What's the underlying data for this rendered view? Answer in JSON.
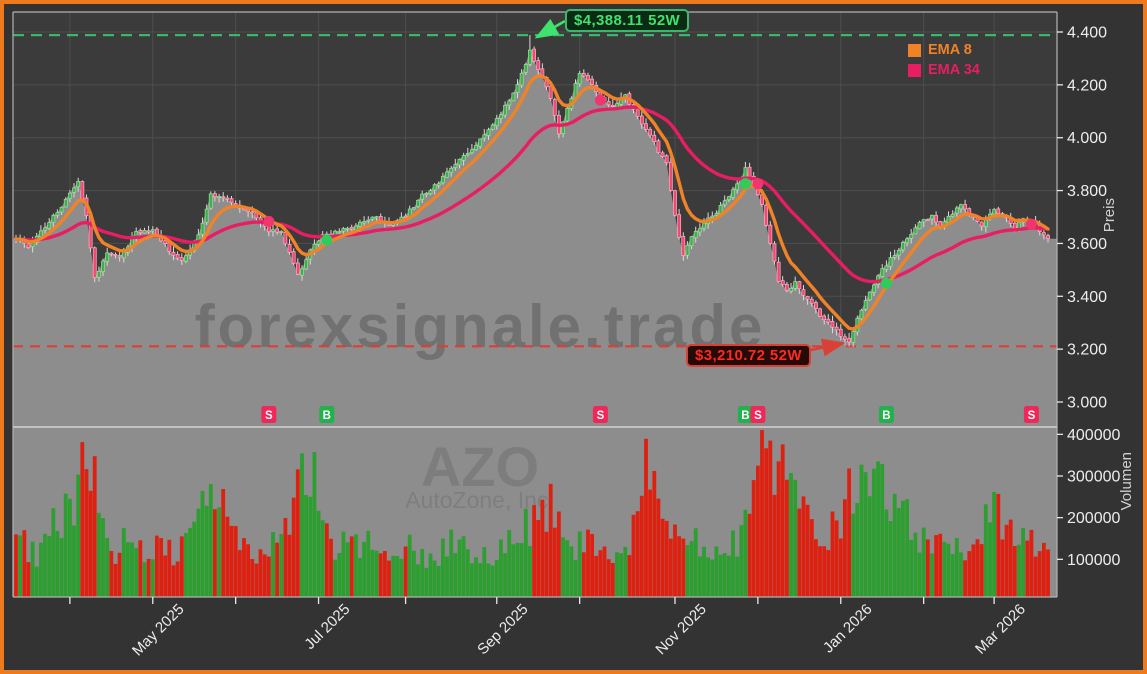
{
  "watermarks": {
    "brand": "forexsignale.trade",
    "ticker": "AZO",
    "company": "AutoZone, Inc."
  },
  "colors": {
    "frame": "#ed7a1c",
    "bg": "#333333",
    "plot_bg": "#3b3b3b",
    "grid": "#4e4e4e",
    "area": "#8d8d8d",
    "spine": "#b3b3b3",
    "tick_mark": "#e8e8e8",
    "wick": "#d9d9d9",
    "candle_up": "#3fae4c",
    "candle_up_edge": "#9be09b",
    "candle_down": "#ef4a71",
    "candle_down_edge": "#ffaec5",
    "vol_up": "#2d9e30",
    "vol_down": "#dd2010",
    "ema8": "#f08228",
    "ema34": "#e81d64",
    "high_line": "#38b86b",
    "high_text": "#3fe26d",
    "low_line": "#d94136",
    "low_text": "#ff2a1f",
    "badge_b": "#22b14c",
    "badge_s": "#f0285a",
    "dot_b": "#2ecc5b",
    "dot_s": "#f1356e"
  },
  "chart_data": {
    "type": "candlestick+volume",
    "ylabel_price": "Preis",
    "ylabel_volume": "Volumen",
    "price_axis_range": [
      3000,
      4400
    ],
    "volume_axis_range": [
      0,
      400000
    ],
    "candle_count": 250,
    "price_ticks": [
      {
        "p": 4400,
        "label": "4.400"
      },
      {
        "p": 4200,
        "label": "4.200"
      },
      {
        "p": 4000,
        "label": "4.000"
      },
      {
        "p": 3800,
        "label": "3.800"
      },
      {
        "p": 3600,
        "label": "3.600"
      },
      {
        "p": 3400,
        "label": "3.400"
      },
      {
        "p": 3200,
        "label": "3.200"
      },
      {
        "p": 3000,
        "label": "3.000"
      }
    ],
    "volume_ticks": [
      {
        "v": 400000,
        "label": "400000"
      },
      {
        "v": 300000,
        "label": "300000"
      },
      {
        "v": 200000,
        "label": "200000"
      },
      {
        "v": 100000,
        "label": "100000"
      }
    ],
    "x_ticks": [
      {
        "index": 13,
        "label": ""
      },
      {
        "index": 33,
        "label": "May 2025"
      },
      {
        "index": 53,
        "label": ""
      },
      {
        "index": 73,
        "label": "Jul 2025"
      },
      {
        "index": 94,
        "label": ""
      },
      {
        "index": 116,
        "label": "Sep 2025"
      },
      {
        "index": 136,
        "label": ""
      },
      {
        "index": 159,
        "label": "Nov 2025"
      },
      {
        "index": 179,
        "label": ""
      },
      {
        "index": 199,
        "label": "Jan 2026"
      },
      {
        "index": 219,
        "label": ""
      },
      {
        "index": 236,
        "label": "Mar 2026"
      }
    ],
    "emas": [
      {
        "period": 8,
        "label": "EMA 8",
        "color": "#f08228"
      },
      {
        "period": 34,
        "label": "EMA 34",
        "color": "#e81d64"
      }
    ],
    "annotations": {
      "high": {
        "text": "$4,388.11 52W",
        "price": 4388.11,
        "index": 124
      },
      "low": {
        "text": "$3,210.72 52W",
        "price": 3210.72,
        "index": 201
      }
    },
    "signals": [
      {
        "type": "S",
        "index": 61
      },
      {
        "type": "B",
        "index": 75
      },
      {
        "type": "S",
        "index": 141
      },
      {
        "type": "B",
        "index": 176
      },
      {
        "type": "S",
        "index": 179
      },
      {
        "type": "B",
        "index": 210
      },
      {
        "type": "S",
        "index": 245
      }
    ],
    "price_anchors": [
      [
        0,
        3620
      ],
      [
        3,
        3590
      ],
      [
        7,
        3660
      ],
      [
        12,
        3760
      ],
      [
        15,
        3830
      ],
      [
        17,
        3700
      ],
      [
        19,
        3470
      ],
      [
        22,
        3560
      ],
      [
        25,
        3545
      ],
      [
        29,
        3640
      ],
      [
        33,
        3655
      ],
      [
        37,
        3575
      ],
      [
        40,
        3530
      ],
      [
        44,
        3630
      ],
      [
        47,
        3790
      ],
      [
        51,
        3760
      ],
      [
        55,
        3730
      ],
      [
        58,
        3700
      ],
      [
        61,
        3650
      ],
      [
        64,
        3640
      ],
      [
        68,
        3480
      ],
      [
        71,
        3570
      ],
      [
        74,
        3630
      ],
      [
        78,
        3645
      ],
      [
        82,
        3665
      ],
      [
        86,
        3705
      ],
      [
        90,
        3665
      ],
      [
        94,
        3705
      ],
      [
        98,
        3780
      ],
      [
        102,
        3830
      ],
      [
        106,
        3900
      ],
      [
        110,
        3955
      ],
      [
        113,
        4010
      ],
      [
        116,
        4070
      ],
      [
        119,
        4140
      ],
      [
        121,
        4200
      ],
      [
        123,
        4280
      ],
      [
        124,
        4330
      ],
      [
        126,
        4260
      ],
      [
        129,
        4150
      ],
      [
        131,
        4020
      ],
      [
        134,
        4150
      ],
      [
        136,
        4250
      ],
      [
        139,
        4200
      ],
      [
        141,
        4150
      ],
      [
        144,
        4120
      ],
      [
        147,
        4160
      ],
      [
        150,
        4080
      ],
      [
        153,
        4010
      ],
      [
        155,
        3950
      ],
      [
        157,
        3900
      ],
      [
        159,
        3700
      ],
      [
        161,
        3560
      ],
      [
        163,
        3620
      ],
      [
        166,
        3680
      ],
      [
        169,
        3720
      ],
      [
        172,
        3780
      ],
      [
        175,
        3850
      ],
      [
        176,
        3890
      ],
      [
        178,
        3820
      ],
      [
        180,
        3750
      ],
      [
        182,
        3600
      ],
      [
        184,
        3460
      ],
      [
        186,
        3420
      ],
      [
        188,
        3450
      ],
      [
        191,
        3390
      ],
      [
        194,
        3330
      ],
      [
        197,
        3280
      ],
      [
        200,
        3240
      ],
      [
        201,
        3230
      ],
      [
        203,
        3310
      ],
      [
        206,
        3420
      ],
      [
        209,
        3500
      ],
      [
        212,
        3560
      ],
      [
        215,
        3620
      ],
      [
        218,
        3680
      ],
      [
        221,
        3700
      ],
      [
        223,
        3660
      ],
      [
        225,
        3700
      ],
      [
        228,
        3745
      ],
      [
        231,
        3700
      ],
      [
        233,
        3660
      ],
      [
        236,
        3730
      ],
      [
        239,
        3690
      ],
      [
        241,
        3660
      ],
      [
        243,
        3700
      ],
      [
        245,
        3680
      ],
      [
        247,
        3650
      ],
      [
        249,
        3620
      ]
    ],
    "volume_anchors": [
      [
        0,
        140000
      ],
      [
        5,
        120000
      ],
      [
        10,
        200000
      ],
      [
        14,
        260000
      ],
      [
        17,
        330000
      ],
      [
        20,
        280000
      ],
      [
        24,
        130000
      ],
      [
        28,
        150000
      ],
      [
        32,
        110000
      ],
      [
        36,
        130000
      ],
      [
        40,
        120000
      ],
      [
        44,
        180000
      ],
      [
        47,
        300000
      ],
      [
        50,
        230000
      ],
      [
        53,
        140000
      ],
      [
        58,
        120000
      ],
      [
        62,
        150000
      ],
      [
        66,
        200000
      ],
      [
        69,
        280000
      ],
      [
        71,
        360000
      ],
      [
        73,
        200000
      ],
      [
        76,
        150000
      ],
      [
        80,
        120000
      ],
      [
        85,
        130000
      ],
      [
        90,
        110000
      ],
      [
        95,
        125000
      ],
      [
        100,
        115000
      ],
      [
        105,
        135000
      ],
      [
        110,
        125000
      ],
      [
        115,
        115000
      ],
      [
        119,
        135000
      ],
      [
        124,
        185000
      ],
      [
        127,
        240000
      ],
      [
        129,
        215000
      ],
      [
        131,
        185000
      ],
      [
        134,
        140000
      ],
      [
        138,
        130000
      ],
      [
        141,
        150000
      ],
      [
        145,
        120000
      ],
      [
        148,
        125000
      ],
      [
        152,
        310000
      ],
      [
        155,
        200000
      ],
      [
        158,
        170000
      ],
      [
        162,
        140000
      ],
      [
        166,
        125000
      ],
      [
        170,
        115000
      ],
      [
        174,
        150000
      ],
      [
        177,
        200000
      ],
      [
        180,
        390000
      ],
      [
        183,
        280000
      ],
      [
        186,
        330000
      ],
      [
        189,
        220000
      ],
      [
        192,
        180000
      ],
      [
        196,
        160000
      ],
      [
        199,
        210000
      ],
      [
        201,
        310000
      ],
      [
        204,
        280000
      ],
      [
        207,
        260000
      ],
      [
        210,
        290000
      ],
      [
        213,
        240000
      ],
      [
        216,
        170000
      ],
      [
        220,
        140000
      ],
      [
        224,
        125000
      ],
      [
        228,
        135000
      ],
      [
        232,
        140000
      ],
      [
        235,
        270000
      ],
      [
        238,
        170000
      ],
      [
        241,
        140000
      ],
      [
        244,
        150000
      ],
      [
        247,
        120000
      ],
      [
        249,
        100000
      ]
    ]
  }
}
